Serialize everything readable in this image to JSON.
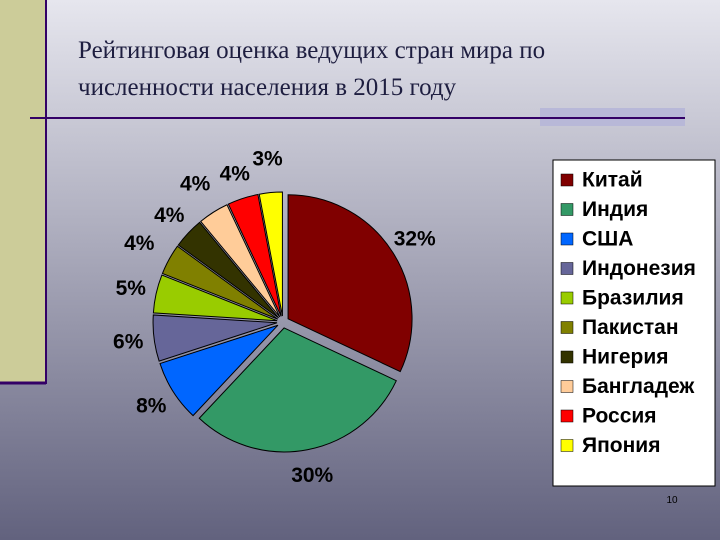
{
  "chart_data": {
    "type": "pie",
    "title": [
      "Рейтинговая оценка ведущих стран мира по",
      "численности населения в 2015 году"
    ],
    "categories": [
      "Китай",
      "Индия",
      "США",
      "Индонезия",
      "Бразилия",
      "Пакистан",
      "Нигерия",
      "Бангладеж",
      "Россия",
      "Япония"
    ],
    "values": [
      32,
      30,
      8,
      6,
      5,
      4,
      4,
      4,
      4,
      3
    ],
    "value_labels": [
      "32%",
      "30%",
      "8%",
      "6%",
      "5%",
      "4%",
      "4%",
      "4%",
      "4%",
      "3%"
    ],
    "colors": [
      "#800000",
      "#339966",
      "#0066ff",
      "#666699",
      "#99cc00",
      "#808000",
      "#333300",
      "#ffcc99",
      "#ff0000",
      "#ffff00"
    ],
    "legend": "right"
  },
  "slide_number": "10"
}
